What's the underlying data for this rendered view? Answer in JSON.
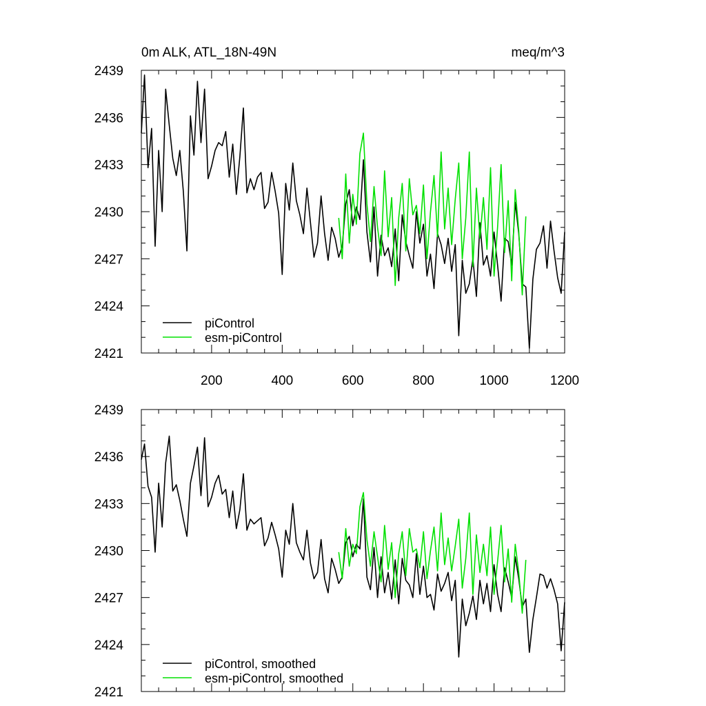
{
  "chart_data": [
    {
      "type": "line",
      "title": "0m ALK, ATL_18N-49N",
      "units": "meq/m^3",
      "xlim": [
        1,
        1200
      ],
      "ylim": [
        2421,
        2439
      ],
      "yticks": [
        2421,
        2424,
        2427,
        2430,
        2433,
        2436,
        2439
      ],
      "xticks": [
        200,
        400,
        600,
        800,
        1000,
        1200
      ],
      "legend": "bottom-left",
      "series": [
        {
          "name": "piControl",
          "color": "#000000",
          "x": [
            1,
            10,
            20,
            30,
            40,
            50,
            60,
            70,
            80,
            90,
            100,
            110,
            120,
            130,
            140,
            150,
            160,
            170,
            180,
            190,
            200,
            210,
            220,
            230,
            240,
            250,
            260,
            270,
            280,
            290,
            300,
            310,
            320,
            330,
            340,
            350,
            360,
            370,
            380,
            390,
            400,
            410,
            420,
            430,
            440,
            450,
            460,
            470,
            480,
            490,
            500,
            510,
            520,
            530,
            540,
            550,
            560,
            570,
            580,
            590,
            600,
            610,
            620,
            630,
            640,
            650,
            660,
            670,
            680,
            690,
            700,
            710,
            720,
            730,
            740,
            750,
            760,
            770,
            780,
            790,
            800,
            810,
            820,
            830,
            840,
            850,
            860,
            870,
            880,
            890,
            900,
            910,
            920,
            930,
            940,
            950,
            960,
            970,
            980,
            990,
            1000,
            1010,
            1020,
            1030,
            1040,
            1050,
            1060,
            1070,
            1080,
            1090,
            1100,
            1110,
            1120,
            1130,
            1140,
            1150,
            1160,
            1170,
            1180,
            1190,
            1200
          ],
          "values": [
            2435.0,
            2438.7,
            2432.8,
            2435.3,
            2427.8,
            2433.9,
            2430.0,
            2437.8,
            2435.5,
            2433.4,
            2432.3,
            2433.9,
            2431.3,
            2427.5,
            2436.1,
            2433.6,
            2438.3,
            2434.4,
            2437.8,
            2432.1,
            2432.9,
            2433.9,
            2434.4,
            2434.2,
            2435.1,
            2432.2,
            2434.3,
            2431.1,
            2433.5,
            2436.6,
            2431.2,
            2432.1,
            2431.4,
            2432.2,
            2432.5,
            2430.2,
            2430.6,
            2432.5,
            2431.3,
            2429.9,
            2426.0,
            2431.8,
            2430.1,
            2433.1,
            2430.7,
            2429.8,
            2428.6,
            2431.5,
            2429.3,
            2427.1,
            2428.0,
            2431.0,
            2428.6,
            2426.9,
            2429.0,
            2428.3,
            2427.1,
            2427.8,
            2430.5,
            2431.4,
            2429.1,
            2430.3,
            2429.5,
            2433.3,
            2428.7,
            2426.8,
            2430.3,
            2425.9,
            2428.5,
            2427.2,
            2427.7,
            2426.5,
            2428.9,
            2425.6,
            2429.8,
            2428.1,
            2427.2,
            2426.4,
            2430.0,
            2428.0,
            2429.2,
            2425.9,
            2427.3,
            2425.1,
            2428.6,
            2427.9,
            2426.7,
            2428.3,
            2426.2,
            2427.9,
            2422.1,
            2426.9,
            2424.8,
            2425.4,
            2427.0,
            2424.6,
            2429.3,
            2426.6,
            2427.2,
            2425.9,
            2428.7,
            2426.6,
            2424.3,
            2428.3,
            2428.1,
            2426.6,
            2430.6,
            2428.6,
            2425.4,
            2425.2,
            2421.3,
            2425.7,
            2427.6,
            2428.0,
            2429.1,
            2426.4,
            2429.4,
            2427.5,
            2425.8,
            2424.8,
            2428.7
          ]
        },
        {
          "name": "esm-piControl",
          "color": "#00e000",
          "x": [
            560,
            570,
            580,
            590,
            600,
            610,
            620,
            630,
            640,
            650,
            660,
            670,
            680,
            690,
            700,
            710,
            720,
            730,
            740,
            750,
            760,
            770,
            780,
            790,
            800,
            810,
            820,
            830,
            840,
            850,
            860,
            870,
            880,
            890,
            900,
            910,
            920,
            930,
            940,
            950,
            960,
            970,
            980,
            990,
            1000,
            1010,
            1020,
            1030,
            1040,
            1050,
            1060,
            1070,
            1080,
            1090
          ],
          "values": [
            2429.6,
            2427.0,
            2432.4,
            2428.0,
            2431.1,
            2429.2,
            2433.7,
            2435.0,
            2430.5,
            2428.1,
            2431.6,
            2429.0,
            2427.2,
            2432.6,
            2428.4,
            2430.9,
            2425.3,
            2429.6,
            2431.8,
            2427.5,
            2432.1,
            2429.8,
            2430.4,
            2428.6,
            2431.7,
            2427.0,
            2430.0,
            2432.3,
            2428.4,
            2433.8,
            2428.9,
            2431.5,
            2427.9,
            2430.8,
            2433.1,
            2427.0,
            2429.6,
            2433.8,
            2426.5,
            2431.5,
            2428.3,
            2430.9,
            2427.6,
            2432.8,
            2425.9,
            2429.0,
            2433.0,
            2427.4,
            2430.7,
            2425.6,
            2431.4,
            2428.8,
            2424.7,
            2429.7
          ]
        }
      ]
    },
    {
      "type": "line",
      "title": "",
      "xlim": [
        1,
        1200
      ],
      "ylim": [
        2421,
        2439
      ],
      "yticks": [
        2421,
        2424,
        2427,
        2430,
        2433,
        2436,
        2439
      ],
      "legend": "bottom-left",
      "series": [
        {
          "name": "piControl, smoothed",
          "color": "#000000",
          "x": [
            1,
            10,
            20,
            30,
            40,
            50,
            60,
            70,
            80,
            90,
            100,
            110,
            120,
            130,
            140,
            150,
            160,
            170,
            180,
            190,
            200,
            210,
            220,
            230,
            240,
            250,
            260,
            270,
            280,
            290,
            300,
            310,
            320,
            330,
            340,
            350,
            360,
            370,
            380,
            390,
            400,
            410,
            420,
            430,
            440,
            450,
            460,
            470,
            480,
            490,
            500,
            510,
            520,
            530,
            540,
            550,
            560,
            570,
            580,
            590,
            600,
            610,
            620,
            630,
            640,
            650,
            660,
            670,
            680,
            690,
            700,
            710,
            720,
            730,
            740,
            750,
            760,
            770,
            780,
            790,
            800,
            810,
            820,
            830,
            840,
            850,
            860,
            870,
            880,
            890,
            900,
            910,
            920,
            930,
            940,
            950,
            960,
            970,
            980,
            990,
            1000,
            1010,
            1020,
            1030,
            1040,
            1050,
            1060,
            1070,
            1080,
            1090,
            1100,
            1110,
            1120,
            1130,
            1140,
            1150,
            1160,
            1170,
            1180,
            1190,
            1200
          ],
          "values": [
            2435.8,
            2436.8,
            2434.1,
            2433.4,
            2429.9,
            2434.3,
            2431.5,
            2435.6,
            2437.3,
            2433.8,
            2434.2,
            2433.2,
            2432.0,
            2430.9,
            2434.3,
            2435.4,
            2436.6,
            2433.5,
            2437.2,
            2432.8,
            2433.4,
            2434.3,
            2434.8,
            2433.6,
            2433.9,
            2432.1,
            2433.8,
            2431.4,
            2432.6,
            2434.9,
            2431.3,
            2432.0,
            2431.7,
            2431.9,
            2432.1,
            2430.3,
            2430.8,
            2431.8,
            2431.0,
            2430.1,
            2428.3,
            2431.3,
            2430.4,
            2433.0,
            2430.5,
            2429.9,
            2429.4,
            2431.3,
            2429.2,
            2428.2,
            2428.6,
            2430.7,
            2428.2,
            2427.3,
            2429.5,
            2428.8,
            2427.9,
            2428.3,
            2430.5,
            2430.9,
            2429.6,
            2430.4,
            2430.1,
            2433.3,
            2428.3,
            2427.5,
            2430.2,
            2427.0,
            2429.6,
            2427.3,
            2428.6,
            2426.9,
            2429.4,
            2426.6,
            2429.5,
            2428.1,
            2427.8,
            2427.0,
            2429.8,
            2427.2,
            2429.0,
            2427.0,
            2427.2,
            2426.2,
            2428.5,
            2427.4,
            2427.9,
            2428.6,
            2426.8,
            2428.1,
            2423.2,
            2426.9,
            2425.2,
            2426.0,
            2427.1,
            2425.6,
            2428.1,
            2426.6,
            2427.9,
            2426.1,
            2429.1,
            2427.2,
            2426.1,
            2428.9,
            2428.0,
            2427.0,
            2429.6,
            2428.2,
            2426.4,
            2426.9,
            2423.5,
            2425.6,
            2427.0,
            2428.5,
            2428.4,
            2427.6,
            2428.2,
            2427.5,
            2426.6,
            2423.6,
            2426.7
          ]
        },
        {
          "name": "esm-piControl, smoothed",
          "color": "#00e000",
          "x": [
            560,
            570,
            580,
            590,
            600,
            610,
            620,
            630,
            640,
            650,
            660,
            670,
            680,
            690,
            700,
            710,
            720,
            730,
            740,
            750,
            760,
            770,
            780,
            790,
            800,
            810,
            820,
            830,
            840,
            850,
            860,
            870,
            880,
            890,
            900,
            910,
            920,
            930,
            940,
            950,
            960,
            970,
            980,
            990,
            1000,
            1010,
            1020,
            1030,
            1040,
            1050,
            1060,
            1070,
            1080,
            1090
          ],
          "values": [
            2429.9,
            2428.2,
            2431.4,
            2429.0,
            2430.4,
            2429.8,
            2432.8,
            2433.7,
            2430.7,
            2429.0,
            2431.2,
            2429.6,
            2428.0,
            2431.6,
            2428.8,
            2430.5,
            2427.0,
            2429.8,
            2431.2,
            2428.4,
            2431.4,
            2429.9,
            2430.1,
            2428.9,
            2431.2,
            2428.2,
            2430.0,
            2431.5,
            2428.7,
            2432.4,
            2429.1,
            2430.8,
            2428.7,
            2430.3,
            2432.0,
            2427.6,
            2429.5,
            2432.4,
            2427.2,
            2431.0,
            2428.6,
            2430.4,
            2428.4,
            2431.5,
            2427.2,
            2429.3,
            2431.6,
            2428.0,
            2430.1,
            2426.7,
            2430.4,
            2428.6,
            2426.0,
            2429.4
          ]
        }
      ]
    }
  ]
}
